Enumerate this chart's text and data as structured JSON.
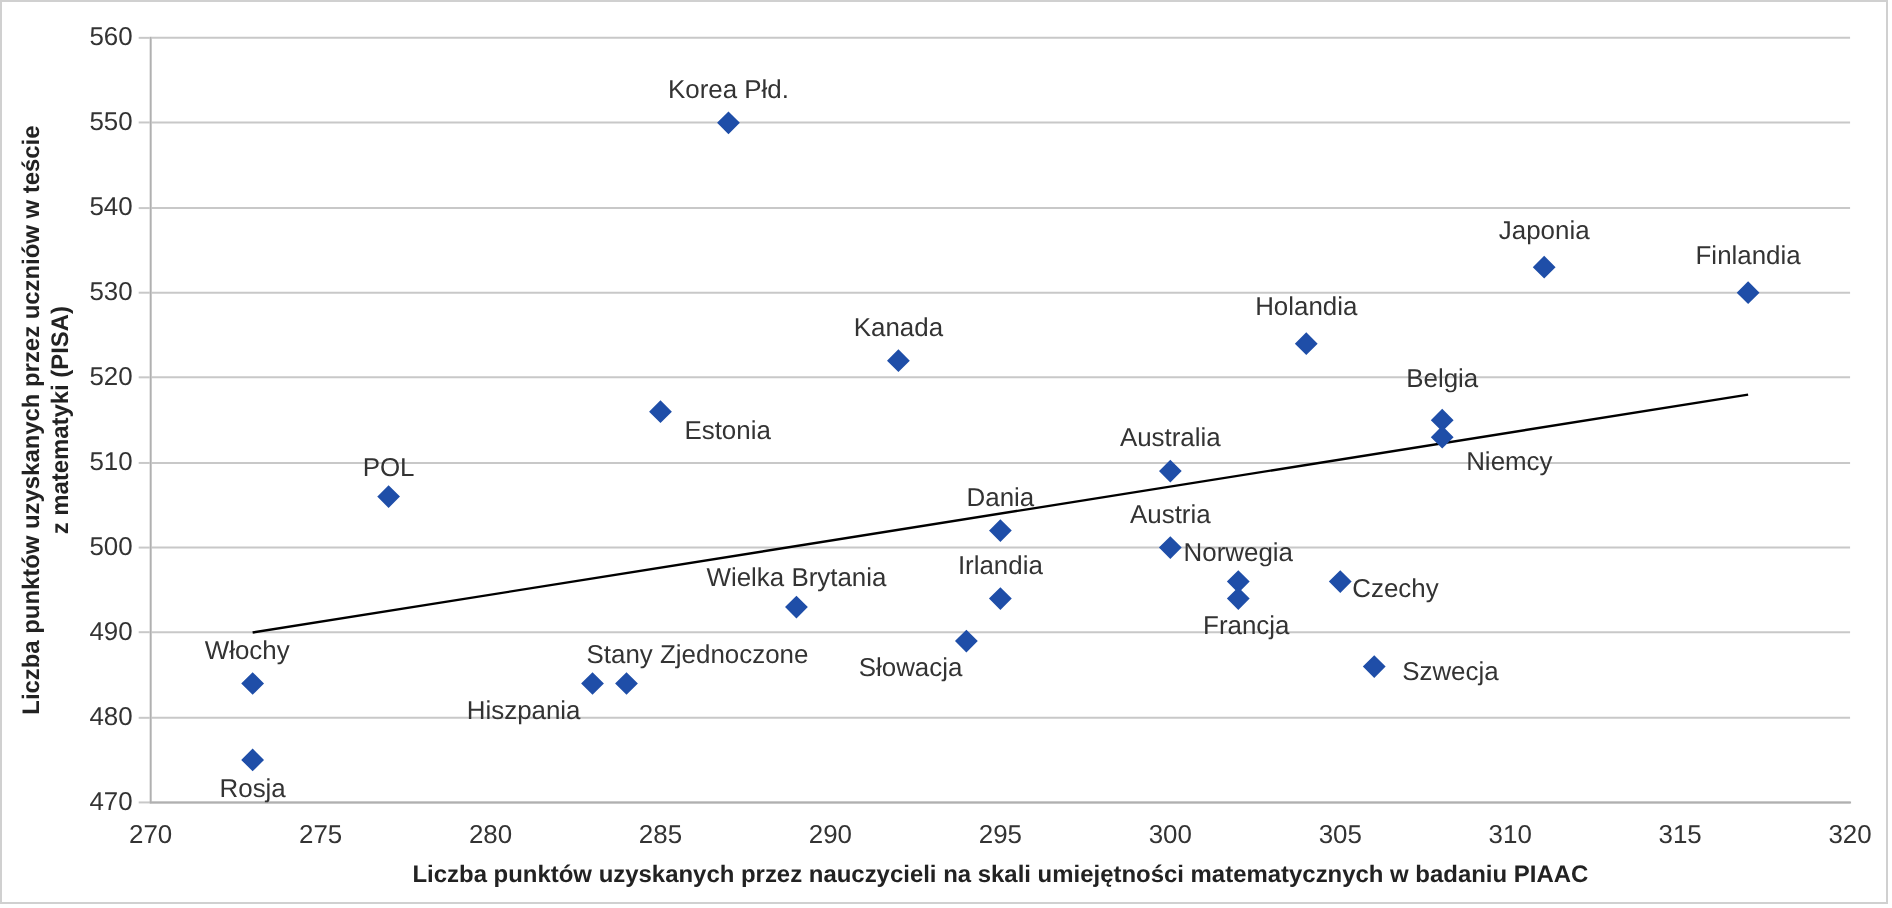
{
  "chart_data": {
    "type": "scatter",
    "xlabel": "Liczba punktów uzyskanych przez nauczycieli na skali umiejętności matematycznych w badaniu PIAAC",
    "ylabel": "Liczba punktów uzyskanych przez uczniów w teście z matematyki (PISA)",
    "xlim": [
      270,
      320
    ],
    "xticks": [
      270,
      275,
      280,
      285,
      290,
      295,
      300,
      305,
      310,
      315,
      320
    ],
    "ylim": [
      470,
      560
    ],
    "yticks": [
      470,
      480,
      490,
      500,
      510,
      520,
      530,
      540,
      550,
      560
    ],
    "grid": "y",
    "legend": false,
    "marker": "diamond",
    "series": [
      {
        "color": "#1f4ea8",
        "x": [
          287,
          292,
          285,
          277,
          273,
          273,
          283,
          284,
          289,
          294,
          295,
          295,
          300,
          300,
          302,
          302,
          305,
          306,
          304,
          308,
          308,
          311,
          317
        ],
        "values": [
          550,
          522,
          516,
          506,
          484,
          475,
          484,
          484,
          493,
          489,
          502,
          494,
          509,
          500,
          496,
          494,
          496,
          486,
          524,
          515,
          513,
          533,
          530
        ]
      },
      {
        "type": "line",
        "color": "#000000",
        "marker": "none",
        "x": [
          273,
          317
        ],
        "values": [
          490,
          518
        ]
      }
    ],
    "annotations": [
      {
        "text": "Korea Płd.",
        "x": 287,
        "y": 550
      },
      {
        "text": "Kanada",
        "x": 292,
        "y": 522
      },
      {
        "text": "Estonia",
        "x": 285,
        "y": 516
      },
      {
        "text": "POL",
        "x": 277,
        "y": 506
      },
      {
        "text": "Włochy",
        "x": 273,
        "y": 484
      },
      {
        "text": "Rosja",
        "x": 273,
        "y": 475
      },
      {
        "text": "Hiszpania",
        "x": 283,
        "y": 484
      },
      {
        "text": "Stany Zjednoczone",
        "x": 284,
        "y": 484
      },
      {
        "text": "Wielka Brytania",
        "x": 289,
        "y": 493
      },
      {
        "text": "Słowacja",
        "x": 294,
        "y": 489
      },
      {
        "text": "Dania",
        "x": 295,
        "y": 502
      },
      {
        "text": "Irlandia",
        "x": 295,
        "y": 494
      },
      {
        "text": "Australia",
        "x": 300,
        "y": 509
      },
      {
        "text": "Austria",
        "x": 300,
        "y": 500
      },
      {
        "text": "Norwegia",
        "x": 302,
        "y": 496
      },
      {
        "text": "Francja",
        "x": 302,
        "y": 494
      },
      {
        "text": "Czechy",
        "x": 305,
        "y": 496
      },
      {
        "text": "Szwecja",
        "x": 306,
        "y": 486
      },
      {
        "text": "Holandia",
        "x": 304,
        "y": 524
      },
      {
        "text": "Belgia",
        "x": 308,
        "y": 515
      },
      {
        "text": "Niemcy",
        "x": 308,
        "y": 513
      },
      {
        "text": "Japonia",
        "x": 311,
        "y": 533
      },
      {
        "text": "Finlandia",
        "x": 317,
        "y": 530
      }
    ]
  }
}
